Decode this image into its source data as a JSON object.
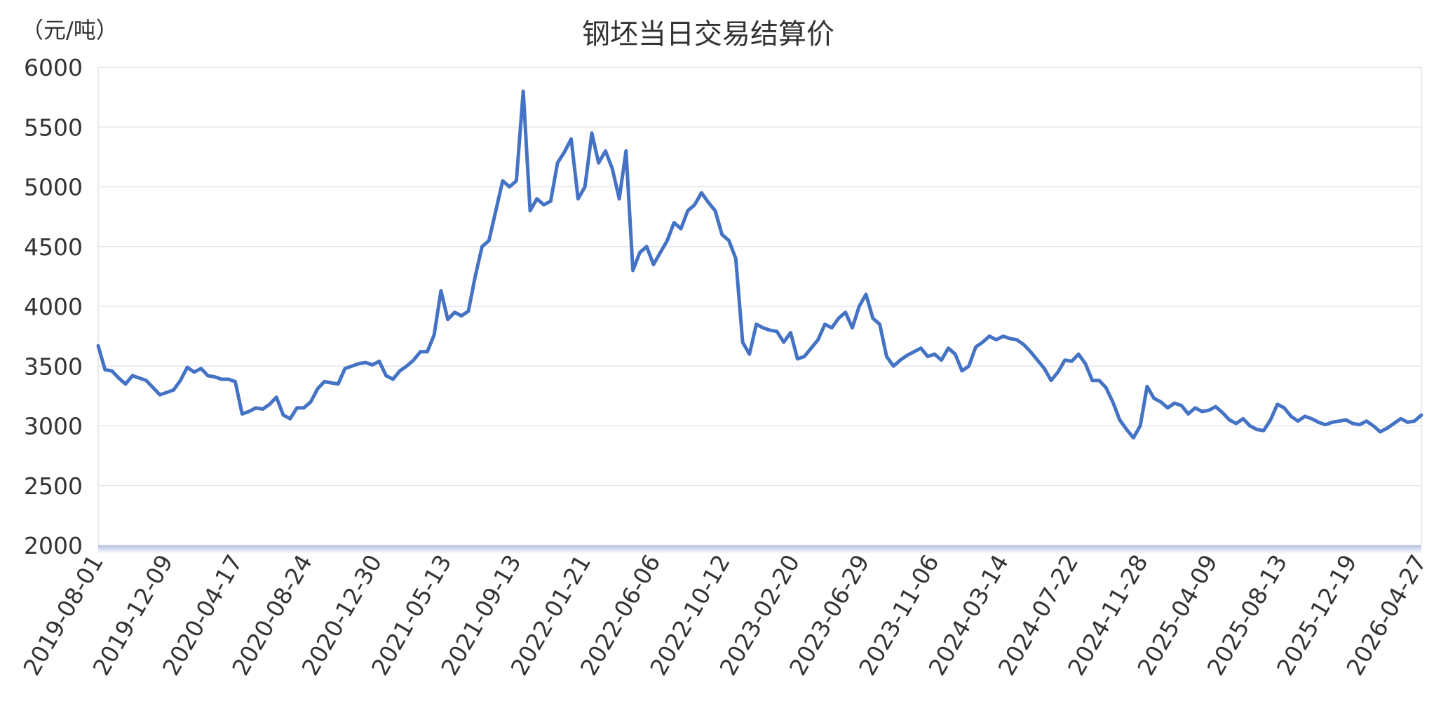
{
  "chart_data": {
    "type": "line",
    "title": "钢坯当日交易结算价",
    "unit_label": "（元/吨）",
    "ylim": [
      2000,
      6000
    ],
    "yticks": [
      "6000",
      "5500",
      "5000",
      "4500",
      "4000",
      "3500",
      "3000",
      "2500",
      "2000"
    ],
    "xticks": [
      "2019-08-01",
      "2019-12-09",
      "2020-04-17",
      "2020-08-24",
      "2020-12-30",
      "2021-05-13",
      "2021-09-13",
      "2022-01-21",
      "2022-06-06",
      "2022-10-12",
      "2023-02-20",
      "2023-06-29",
      "2023-11-06",
      "2024-03-14",
      "2024-07-22",
      "2024-11-28",
      "2025-04-09",
      "2025-08-13",
      "2025-12-19",
      "2026-04-27"
    ],
    "grid": true,
    "legend": "none",
    "series": [
      {
        "color": "#4472C4",
        "values": [
          3670,
          3470,
          3460,
          3400,
          3350,
          3420,
          3400,
          3380,
          3320,
          3260,
          3280,
          3300,
          3380,
          3490,
          3450,
          3480,
          3420,
          3410,
          3390,
          3390,
          3370,
          3100,
          3120,
          3150,
          3140,
          3180,
          3240,
          3090,
          3060,
          3150,
          3150,
          3200,
          3310,
          3370,
          3360,
          3350,
          3480,
          3500,
          3520,
          3530,
          3510,
          3540,
          3420,
          3390,
          3460,
          3500,
          3550,
          3620,
          3620,
          3760,
          4130,
          3890,
          3950,
          3920,
          3960,
          4250,
          4500,
          4550,
          4800,
          5050,
          5000,
          5050,
          5800,
          4800,
          4900,
          4850,
          4880,
          5200,
          5290,
          5400,
          4900,
          5000,
          5450,
          5200,
          5300,
          5150,
          4900,
          5300,
          4300,
          4450,
          4500,
          4350,
          4450,
          4550,
          4700,
          4650,
          4800,
          4850,
          4950,
          4870,
          4800,
          4600,
          4550,
          4400,
          3700,
          3600,
          3850,
          3820,
          3800,
          3790,
          3700,
          3780,
          3560,
          3580,
          3650,
          3720,
          3850,
          3820,
          3900,
          3950,
          3820,
          4000,
          4100,
          3900,
          3850,
          3580,
          3500,
          3550,
          3590,
          3620,
          3650,
          3580,
          3600,
          3550,
          3650,
          3600,
          3460,
          3500,
          3660,
          3700,
          3750,
          3720,
          3750,
          3730,
          3720,
          3680,
          3620,
          3550,
          3480,
          3380,
          3450,
          3550,
          3540,
          3600,
          3520,
          3380,
          3380,
          3320,
          3200,
          3050,
          2970,
          2900,
          3000,
          3330,
          3230,
          3200,
          3150,
          3190,
          3170,
          3100,
          3150,
          3120,
          3130,
          3160,
          3110,
          3050,
          3020,
          3060,
          3000,
          2970,
          2960,
          3050,
          3180,
          3150,
          3080,
          3040,
          3080,
          3060,
          3030,
          3010,
          3030,
          3040,
          3050,
          3020,
          3010,
          3040,
          3000,
          2950,
          2980,
          3020,
          3060,
          3030,
          3040,
          3090
        ]
      }
    ]
  }
}
